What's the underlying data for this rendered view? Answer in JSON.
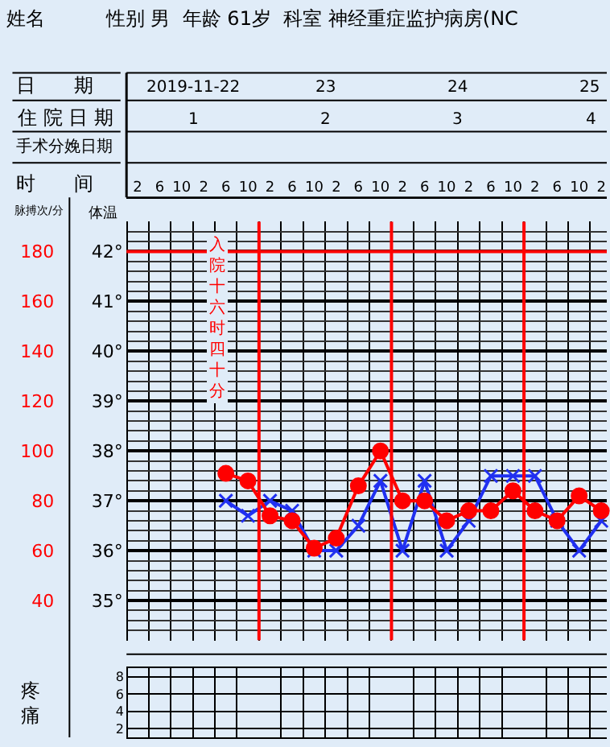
{
  "chart_data": {
    "type": "line",
    "title": "姓名          性别 男  年龄 61岁  科室 神经重症监护病房(NC",
    "xlabel": "时　　间",
    "ylabel": "体温",
    "y2label": "脉搏次/分",
    "y3label": "疼痛",
    "annotations": [
      "入院十六时四十分",
      "手术分娩日期",
      "日　　期",
      "2019-11-22",
      "23",
      "24",
      "25",
      "住 院 日 期",
      "1",
      "2",
      "3",
      "4"
    ],
    "x": [
      "2019-11-22T18:00",
      "2019-11-22T22:00",
      "2019-11-23T02:00",
      "2019-11-23T06:00",
      "2019-11-23T10:00",
      "2019-11-23T14:00",
      "2019-11-23T18:00",
      "2019-11-23T22:00",
      "2019-11-24T02:00",
      "2019-11-24T06:00",
      "2019-11-24T10:00",
      "2019-11-24T14:00",
      "2019-11-24T18:00",
      "2019-11-24T22:00",
      "2019-11-25T02:00",
      "2019-11-25T06:00",
      "2019-11-25T10:00",
      "2019-11-25T14:00"
    ],
    "series": [
      {
        "color": "#2030f0",
        "marker": "cross",
        "axis": "y",
        "values": [
          37.0,
          36.7,
          37.0,
          36.8,
          36.0,
          36.0,
          36.5,
          37.4,
          36.0,
          37.4,
          36.0,
          36.6,
          37.5,
          37.5,
          37.5,
          36.6,
          36.0,
          36.6
        ]
      },
      {
        "color": "#ff0000",
        "marker": "circle",
        "axis": "y2",
        "values": [
          91,
          88,
          74,
          72,
          61,
          65,
          86,
          100,
          80,
          80,
          72,
          76,
          76,
          84,
          76,
          72,
          82,
          76
        ]
      }
    ],
    "xlim": [
      "2019-11-22T00:00",
      "2019-11-25T15:00"
    ],
    "xticks": [
      {
        "value": "2019-11-22T02:00",
        "label": "2"
      },
      {
        "value": "2019-11-22T06:00",
        "label": "6"
      },
      {
        "value": "2019-11-22T10:00",
        "label": "10"
      },
      {
        "value": "2019-11-22T14:00",
        "label": "2"
      },
      {
        "value": "2019-11-22T18:00",
        "label": "6"
      },
      {
        "value": "2019-11-22T22:00",
        "label": "10"
      },
      {
        "value": "2019-11-23T02:00",
        "label": "2"
      },
      {
        "value": "2019-11-23T06:00",
        "label": "6"
      },
      {
        "value": "2019-11-23T10:00",
        "label": "10"
      },
      {
        "value": "2019-11-23T14:00",
        "label": "2"
      },
      {
        "value": "2019-11-23T18:00",
        "label": "6"
      },
      {
        "value": "2019-11-23T22:00",
        "label": "10"
      },
      {
        "value": "2019-11-24T02:00",
        "label": "2"
      },
      {
        "value": "2019-11-24T06:00",
        "label": "6"
      },
      {
        "value": "2019-11-24T10:00",
        "label": "10"
      },
      {
        "value": "2019-11-24T14:00",
        "label": "2"
      },
      {
        "value": "2019-11-24T18:00",
        "label": "6"
      },
      {
        "value": "2019-11-24T22:00",
        "label": "10"
      },
      {
        "value": "2019-11-25T02:00",
        "label": "2"
      },
      {
        "value": "2019-11-25T06:00",
        "label": "6"
      },
      {
        "value": "2019-11-25T10:00",
        "label": "10"
      },
      {
        "value": "2019-11-25T14:00",
        "label": "2"
      }
    ],
    "ylim": [
      34.2,
      42.6
    ],
    "yticks": [
      {
        "value": 35,
        "label": "35°"
      },
      {
        "value": 36,
        "label": "36°"
      },
      {
        "value": 37,
        "label": "37°"
      },
      {
        "value": 38,
        "label": "38°"
      },
      {
        "value": 39,
        "label": "39°"
      },
      {
        "value": 40,
        "label": "40°"
      },
      {
        "value": 41,
        "label": "41°"
      },
      {
        "value": 42,
        "label": "42°"
      }
    ],
    "y2lim": [
      24,
      192
    ],
    "y2ticks": [
      40,
      60,
      80,
      100,
      120,
      140,
      160,
      180
    ],
    "y3lim": [
      1,
      9
    ],
    "y3ticks": [
      2,
      4,
      6,
      8
    ],
    "ref_lines": [
      {
        "axis": "y",
        "value": 42,
        "color": "#ff0000"
      },
      {
        "axis": "x",
        "value": "2019-11-23T00:00",
        "color": "#ff0000"
      },
      {
        "axis": "x",
        "value": "2019-11-24T00:00",
        "color": "#ff0000"
      },
      {
        "axis": "x",
        "value": "2019-11-25T00:00",
        "color": "#ff0000"
      }
    ],
    "grid": true
  }
}
